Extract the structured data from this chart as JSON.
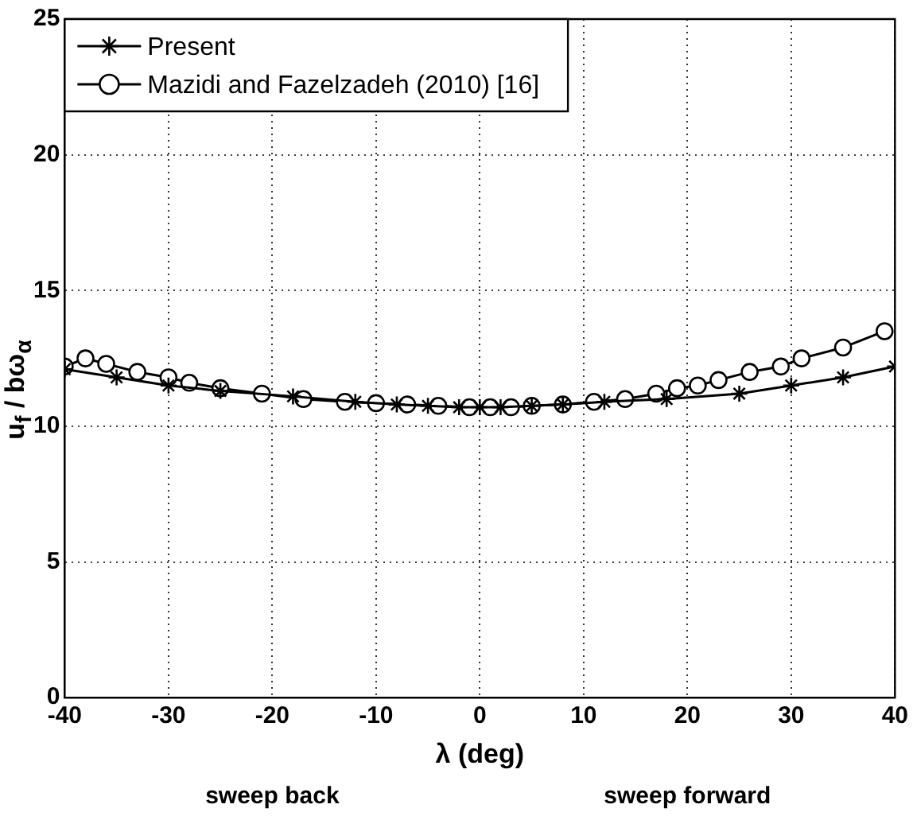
{
  "chart_data": {
    "type": "line",
    "xlabel": "λ (deg)",
    "ylabel": "u$_{f}$ / bω$_{α}$",
    "xlim": [
      -40,
      40
    ],
    "xticks": [
      -40,
      -30,
      -20,
      -10,
      0,
      10,
      20,
      30,
      40
    ],
    "ylim": [
      0,
      25
    ],
    "yticks": [
      0,
      5,
      10,
      15,
      20,
      25
    ],
    "grid": true,
    "legend": "top left",
    "line_style": "solid",
    "series": [
      {
        "name": "Present",
        "color": "#000000",
        "marker": "cross",
        "x": [
          -40,
          -35,
          -30,
          -25,
          -18,
          -12,
          -8,
          -5,
          -2,
          0,
          2,
          5,
          8,
          12,
          18,
          25,
          30,
          35,
          40
        ],
        "values": [
          12.1,
          11.8,
          11.5,
          11.3,
          11.1,
          10.9,
          10.8,
          10.75,
          10.7,
          10.7,
          10.7,
          10.75,
          10.8,
          10.9,
          11.0,
          11.2,
          11.5,
          11.8,
          12.2
        ]
      },
      {
        "name": "Mazidi and Fazelzadeh (2010) [16]",
        "color": "#000000",
        "marker": "circle",
        "x": [
          -40,
          -38,
          -36,
          -33,
          -30,
          -28,
          -25,
          -21,
          -17,
          -13,
          -10,
          -7,
          -4,
          -1,
          1,
          3,
          5,
          8,
          11,
          14,
          17,
          19,
          21,
          23,
          26,
          29,
          31,
          35,
          39
        ],
        "values": [
          12.2,
          12.5,
          12.3,
          12.0,
          11.8,
          11.6,
          11.4,
          11.2,
          11.0,
          10.9,
          10.85,
          10.8,
          10.75,
          10.7,
          10.7,
          10.7,
          10.75,
          10.8,
          10.9,
          11.0,
          11.2,
          11.4,
          11.5,
          11.7,
          12.0,
          12.2,
          12.5,
          12.9,
          13.5
        ]
      }
    ],
    "annotations": [
      "sweep back",
      "sweep forward"
    ]
  }
}
